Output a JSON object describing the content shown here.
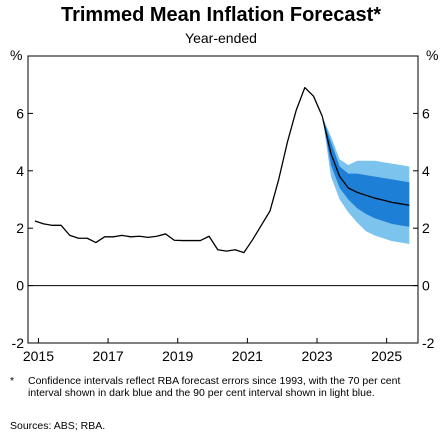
{
  "header": {
    "title": "Trimmed Mean Inflation Forecast*",
    "subtitle": "Year-ended"
  },
  "footnote": {
    "marker": "*",
    "text": "Confidence intervals reflect RBA forecast errors since 1993, with the 70 per cent interval shown in dark blue and the 90 per cent interval shown in light blue."
  },
  "sources": "Sources: ABS; RBA.",
  "colors": {
    "line": "#000000",
    "band70": "#1e7fd6",
    "band90": "#7cc3ee"
  },
  "chart_data": {
    "type": "line",
    "title": "Trimmed Mean Inflation Forecast*",
    "subtitle": "Year-ended",
    "ylabel_left": "%",
    "ylabel_right": "%",
    "ylim": [
      -2,
      8
    ],
    "xlim": [
      2014.7,
      2025.9
    ],
    "yticks": [
      "-2",
      "0",
      "2",
      "4",
      "6"
    ],
    "xticks": [
      "2015",
      "2017",
      "2019",
      "2021",
      "2023",
      "2025"
    ],
    "zero_line": true,
    "series": [
      {
        "kind": "actual",
        "points": [
          [
            2014.9,
            2.25
          ],
          [
            2015.15,
            2.15
          ],
          [
            2015.4,
            2.1
          ],
          [
            2015.65,
            2.1
          ],
          [
            2015.9,
            1.75
          ],
          [
            2016.15,
            1.65
          ],
          [
            2016.4,
            1.65
          ],
          [
            2016.65,
            1.5
          ],
          [
            2016.9,
            1.7
          ],
          [
            2017.15,
            1.7
          ],
          [
            2017.4,
            1.75
          ],
          [
            2017.65,
            1.7
          ],
          [
            2017.9,
            1.72
          ],
          [
            2018.15,
            1.68
          ],
          [
            2018.4,
            1.72
          ],
          [
            2018.65,
            1.8
          ],
          [
            2018.9,
            1.58
          ],
          [
            2019.15,
            1.57
          ],
          [
            2019.4,
            1.57
          ],
          [
            2019.65,
            1.57
          ],
          [
            2019.9,
            1.72
          ],
          [
            2020.15,
            1.25
          ],
          [
            2020.4,
            1.2
          ],
          [
            2020.65,
            1.25
          ],
          [
            2020.9,
            1.15
          ],
          [
            2021.15,
            1.6
          ],
          [
            2021.4,
            2.1
          ],
          [
            2021.65,
            2.6
          ],
          [
            2021.9,
            3.7
          ],
          [
            2022.15,
            5.0
          ],
          [
            2022.4,
            6.1
          ],
          [
            2022.65,
            6.9
          ],
          [
            2022.9,
            6.6
          ],
          [
            2023.15,
            5.9
          ]
        ]
      },
      {
        "kind": "forecast",
        "points": [
          [
            2023.15,
            5.9
          ],
          [
            2023.4,
            4.6
          ],
          [
            2023.65,
            3.8
          ],
          [
            2023.9,
            3.4
          ],
          [
            2024.15,
            3.25
          ],
          [
            2024.4,
            3.15
          ],
          [
            2024.65,
            3.05
          ],
          [
            2024.9,
            2.98
          ],
          [
            2025.15,
            2.9
          ],
          [
            2025.4,
            2.85
          ],
          [
            2025.65,
            2.8
          ]
        ]
      }
    ],
    "bands": [
      {
        "kind": "90%",
        "x": [
          2023.15,
          2023.4,
          2023.65,
          2023.9,
          2024.15,
          2024.4,
          2024.65,
          2024.9,
          2025.15,
          2025.4,
          2025.65
        ],
        "upper": [
          5.9,
          5.2,
          4.4,
          4.2,
          4.35,
          4.35,
          4.35,
          4.3,
          4.25,
          4.2,
          4.15
        ],
        "lower": [
          5.9,
          3.8,
          3.0,
          2.55,
          2.2,
          1.9,
          1.75,
          1.65,
          1.55,
          1.5,
          1.45
        ]
      },
      {
        "kind": "70%",
        "x": [
          2023.15,
          2023.4,
          2023.65,
          2023.9,
          2024.15,
          2024.4,
          2024.65,
          2024.9,
          2025.15,
          2025.4,
          2025.65
        ],
        "upper": [
          5.9,
          5.0,
          4.15,
          3.9,
          3.9,
          3.85,
          3.8,
          3.75,
          3.7,
          3.65,
          3.6
        ],
        "lower": [
          5.9,
          4.2,
          3.4,
          3.0,
          2.7,
          2.5,
          2.35,
          2.25,
          2.15,
          2.1,
          2.05
        ]
      }
    ]
  }
}
